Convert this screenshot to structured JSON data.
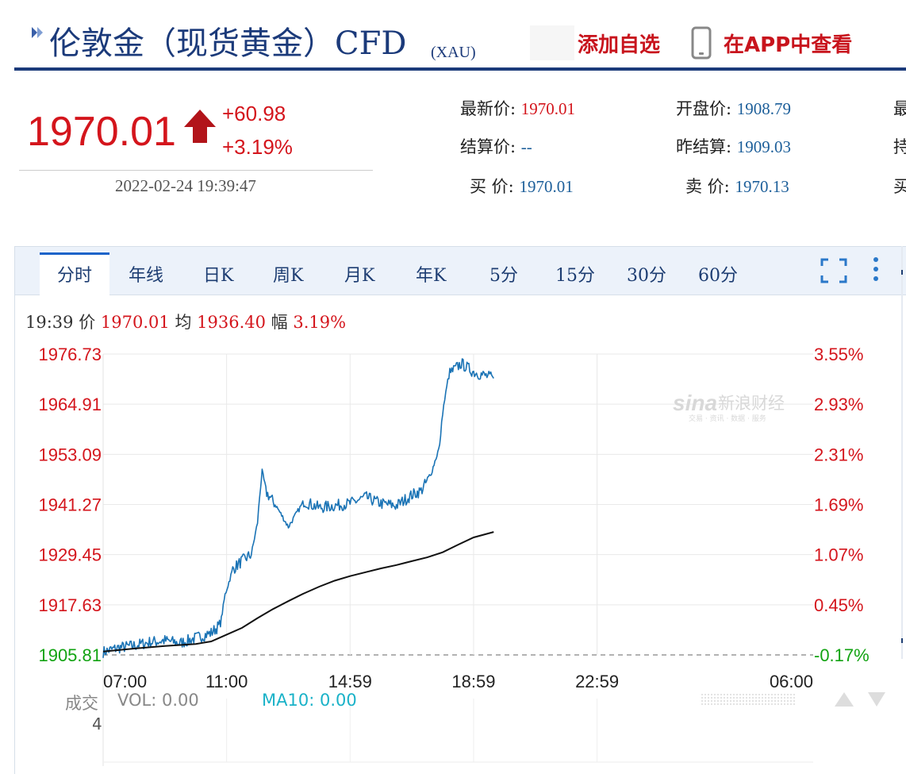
{
  "header": {
    "title": "伦敦金（现货黄金）CFD",
    "symbol": "(XAU)",
    "add_watchlist": "添加自选",
    "view_in_app": "在APP中查看"
  },
  "quote": {
    "last_price": "1970.01",
    "change": "+60.98",
    "change_pct": "+3.19%",
    "timestamp": "2022-02-24 19:39:47",
    "fields": [
      {
        "label": "最新价:",
        "value": "1970.01",
        "color": "#d4151c"
      },
      {
        "label": "开盘价:",
        "value": "1908.79",
        "color": "#1d5f9a"
      },
      {
        "label": "结算价:",
        "value": "--",
        "color": "#1d5f9a"
      },
      {
        "label": "昨结算:",
        "value": "1909.03",
        "color": "#1d5f9a"
      },
      {
        "label": "买  价:",
        "value": "1970.01",
        "color": "#1d5f9a"
      },
      {
        "label": "卖  价:",
        "value": "1970.13",
        "color": "#1d5f9a"
      }
    ],
    "cut_labels": [
      "最",
      "持",
      "买"
    ]
  },
  "tabs": [
    "分时",
    "年线",
    "日K",
    "周K",
    "月K",
    "年K",
    "5分",
    "15分",
    "30分",
    "60分"
  ],
  "info_bar": {
    "time": "19:39",
    "price_label": "价",
    "price": "1970.01",
    "avg_label": "均",
    "avg": "1936.40",
    "amp_label": "幅",
    "amp": "3.19%"
  },
  "volume": {
    "label": "成交",
    "vol": "VOL: 0.00",
    "ma10": "MA10: 0.00",
    "axis_value": "4"
  },
  "watermark": {
    "brand": "sina",
    "name": "新浪财经",
    "tagline": "交易 · 资讯 · 数据 · 服务"
  },
  "colors": {
    "price_line": "#1a73b5",
    "avg_line": "#111111",
    "up": "#d4151c",
    "down": "#12a312",
    "accent": "#1b3a7a"
  },
  "chart_data": {
    "type": "line",
    "title": "",
    "left_ticks": [
      "1976.73",
      "1964.91",
      "1953.09",
      "1941.27",
      "1929.45",
      "1917.63",
      "1905.81"
    ],
    "right_ticks": [
      "3.55%",
      "2.93%",
      "2.31%",
      "1.69%",
      "1.07%",
      "0.45%",
      "-0.17%"
    ],
    "x_ticks": [
      "07:00",
      "11:00",
      "14:59",
      "18:59",
      "22:59",
      "06:00"
    ],
    "ylim": [
      1905.81,
      1976.73
    ],
    "prev_settle": 1909.03,
    "x_range_hours": [
      0,
      23
    ],
    "series": [
      {
        "name": "价",
        "x": [
          0,
          0.5,
          1.0,
          1.5,
          2.0,
          2.5,
          3.0,
          3.5,
          3.8,
          3.95,
          4.2,
          4.5,
          4.8,
          5.0,
          5.1,
          5.15,
          5.3,
          5.6,
          6.0,
          6.5,
          7.0,
          7.5,
          8.0,
          8.5,
          9.0,
          9.5,
          10.0,
          10.3,
          10.6,
          10.9,
          11.0,
          11.2,
          11.6,
          12.0,
          12.65
        ],
        "y": [
          1906.5,
          1907.5,
          1908.0,
          1908.8,
          1909.2,
          1908.6,
          1909.8,
          1911.0,
          1913.0,
          1920.0,
          1926.0,
          1928.0,
          1929.5,
          1937.0,
          1946.0,
          1949.0,
          1944.0,
          1941.0,
          1936.0,
          1942.0,
          1940.5,
          1941.0,
          1941.5,
          1943.0,
          1941.5,
          1941.0,
          1943.5,
          1944.5,
          1948.0,
          1955.0,
          1963.0,
          1972.0,
          1974.5,
          1972.5,
          1971.0
        ]
      },
      {
        "name": "均",
        "x": [
          0,
          1.0,
          2.0,
          3.0,
          3.5,
          4.0,
          4.5,
          5.0,
          5.5,
          6.0,
          6.5,
          7.0,
          7.5,
          8.0,
          8.5,
          9.0,
          9.5,
          10.0,
          10.5,
          11.0,
          11.5,
          12.0,
          12.65
        ],
        "y": [
          1906.6,
          1907.3,
          1907.9,
          1908.4,
          1909.0,
          1910.6,
          1912.2,
          1914.5,
          1916.6,
          1918.5,
          1920.3,
          1921.9,
          1923.3,
          1924.4,
          1925.3,
          1926.2,
          1927.0,
          1927.9,
          1928.8,
          1930.0,
          1931.8,
          1933.5,
          1934.8
        ]
      }
    ]
  }
}
